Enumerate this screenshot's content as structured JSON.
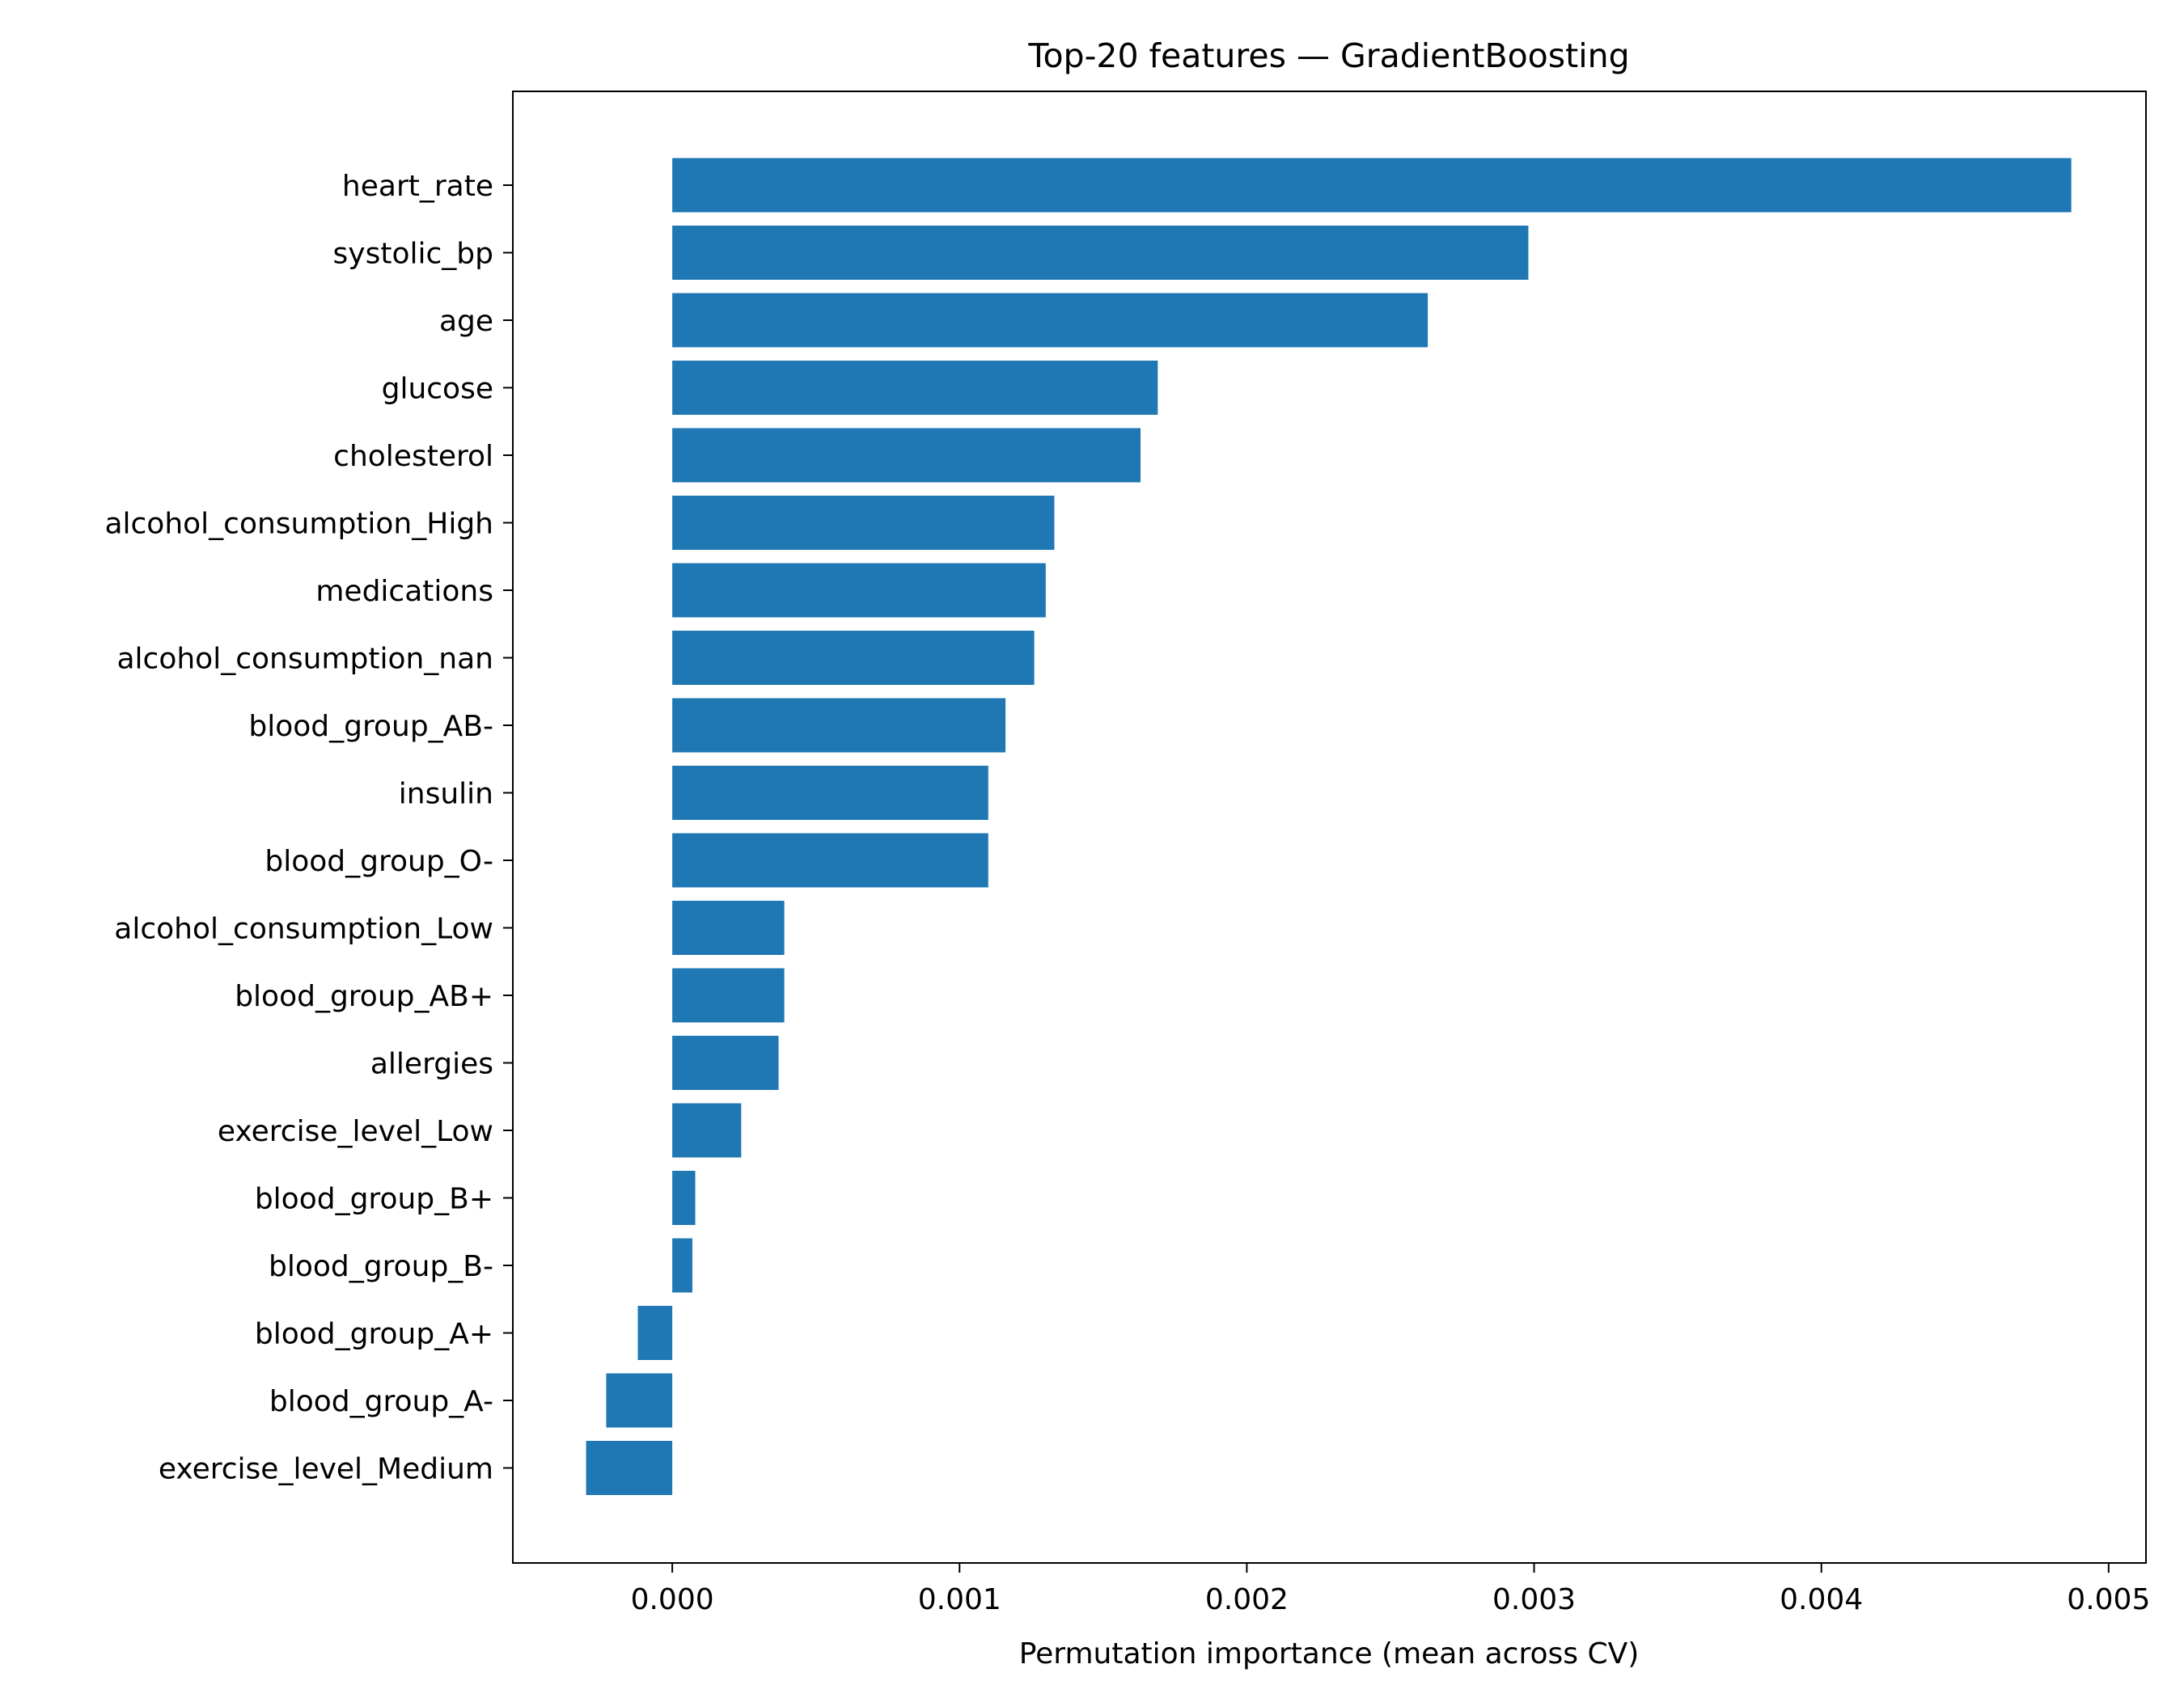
{
  "chart_data": {
    "type": "bar",
    "orientation": "horizontal",
    "title": "Top-20 features — GradientBoosting",
    "xlabel": "Permutation importance (mean across CV)",
    "ylabel": "",
    "xlim": [
      -0.000555,
      0.00513
    ],
    "xticks": [
      0.0,
      0.001,
      0.002,
      0.003,
      0.004,
      0.005
    ],
    "xtick_labels": [
      "0.000",
      "0.001",
      "0.002",
      "0.003",
      "0.004",
      "0.005"
    ],
    "grid": false,
    "legend": "none",
    "bar_color": "#1f77b4",
    "categories": [
      "heart_rate",
      "systolic_bp",
      "age",
      "glucose",
      "cholesterol",
      "alcohol_consumption_High",
      "medications",
      "alcohol_consumption_nan",
      "blood_group_AB-",
      "insulin",
      "blood_group_O-",
      "alcohol_consumption_Low",
      "blood_group_AB+",
      "allergies",
      "exercise_level_Low",
      "blood_group_B+",
      "blood_group_B-",
      "blood_group_A+",
      "blood_group_A-",
      "exercise_level_Medium"
    ],
    "values": [
      0.00487,
      0.00298,
      0.00263,
      0.00169,
      0.00163,
      0.00133,
      0.0013,
      0.00126,
      0.00116,
      0.0011,
      0.0011,
      0.00039,
      0.00039,
      0.00037,
      0.00024,
      8e-05,
      7e-05,
      -0.00012,
      -0.00023,
      -0.0003
    ]
  }
}
